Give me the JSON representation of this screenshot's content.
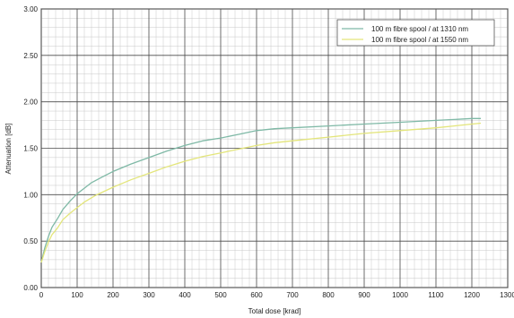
{
  "chart_data": {
    "type": "line",
    "xlabel": "Total dose [krad]",
    "ylabel": "Attenuation [dB]",
    "xlim": [
      0,
      1300
    ],
    "ylim": [
      0,
      3
    ],
    "x_ticks": [
      0,
      100,
      200,
      300,
      400,
      500,
      600,
      700,
      800,
      900,
      1000,
      1100,
      1200,
      1300
    ],
    "y_ticks": [
      "0.00",
      "0.50",
      "1.00",
      "1.50",
      "2.00",
      "2.50",
      "3.00"
    ],
    "grid": true,
    "minor_grid": true,
    "legend_position": "top-right",
    "series": [
      {
        "name": "100 m fibre spool / at 1310 nm",
        "color": "#7fb9a6",
        "x": [
          0,
          10,
          20,
          30,
          45,
          60,
          80,
          100,
          120,
          140,
          170,
          200,
          250,
          300,
          350,
          400,
          450,
          500,
          550,
          600,
          650,
          700,
          800,
          900,
          1000,
          1100,
          1150,
          1200,
          1225
        ],
        "y": [
          0.27,
          0.43,
          0.55,
          0.65,
          0.74,
          0.84,
          0.93,
          1.01,
          1.07,
          1.13,
          1.19,
          1.25,
          1.33,
          1.4,
          1.47,
          1.53,
          1.58,
          1.61,
          1.65,
          1.69,
          1.71,
          1.72,
          1.74,
          1.76,
          1.78,
          1.8,
          1.81,
          1.82,
          1.82
        ]
      },
      {
        "name": "100 m fibre spool / at 1550 nm",
        "color": "#e3e57a",
        "x": [
          0,
          10,
          20,
          30,
          45,
          60,
          80,
          100,
          120,
          150,
          200,
          250,
          300,
          350,
          400,
          450,
          500,
          550,
          600,
          650,
          700,
          800,
          900,
          1000,
          1100,
          1150,
          1200,
          1225
        ],
        "y": [
          0.27,
          0.39,
          0.49,
          0.57,
          0.64,
          0.73,
          0.8,
          0.86,
          0.92,
          0.99,
          1.08,
          1.16,
          1.23,
          1.3,
          1.36,
          1.41,
          1.45,
          1.49,
          1.53,
          1.56,
          1.58,
          1.62,
          1.66,
          1.69,
          1.72,
          1.74,
          1.76,
          1.77
        ]
      }
    ]
  }
}
